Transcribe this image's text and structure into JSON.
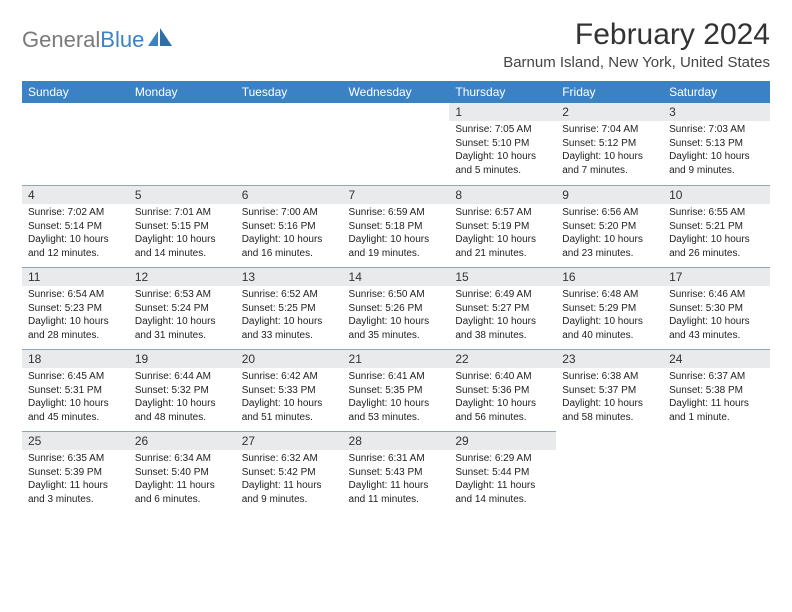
{
  "logo": {
    "text_gray": "General",
    "text_blue": "Blue"
  },
  "header": {
    "month_title": "February 2024",
    "location": "Barnum Island, New York, United States"
  },
  "colors": {
    "header_bg": "#3b82c4",
    "header_fg": "#ffffff",
    "daynum_bg": "#e9eaec",
    "rule": "#8fa5b8"
  },
  "weekdays": [
    "Sunday",
    "Monday",
    "Tuesday",
    "Wednesday",
    "Thursday",
    "Friday",
    "Saturday"
  ],
  "weeks": [
    [
      {
        "empty": true
      },
      {
        "empty": true
      },
      {
        "empty": true
      },
      {
        "empty": true
      },
      {
        "n": "1",
        "sr": "7:05 AM",
        "ss": "5:10 PM",
        "dl": "10 hours and 5 minutes."
      },
      {
        "n": "2",
        "sr": "7:04 AM",
        "ss": "5:12 PM",
        "dl": "10 hours and 7 minutes."
      },
      {
        "n": "3",
        "sr": "7:03 AM",
        "ss": "5:13 PM",
        "dl": "10 hours and 9 minutes."
      }
    ],
    [
      {
        "n": "4",
        "sr": "7:02 AM",
        "ss": "5:14 PM",
        "dl": "10 hours and 12 minutes."
      },
      {
        "n": "5",
        "sr": "7:01 AM",
        "ss": "5:15 PM",
        "dl": "10 hours and 14 minutes."
      },
      {
        "n": "6",
        "sr": "7:00 AM",
        "ss": "5:16 PM",
        "dl": "10 hours and 16 minutes."
      },
      {
        "n": "7",
        "sr": "6:59 AM",
        "ss": "5:18 PM",
        "dl": "10 hours and 19 minutes."
      },
      {
        "n": "8",
        "sr": "6:57 AM",
        "ss": "5:19 PM",
        "dl": "10 hours and 21 minutes."
      },
      {
        "n": "9",
        "sr": "6:56 AM",
        "ss": "5:20 PM",
        "dl": "10 hours and 23 minutes."
      },
      {
        "n": "10",
        "sr": "6:55 AM",
        "ss": "5:21 PM",
        "dl": "10 hours and 26 minutes."
      }
    ],
    [
      {
        "n": "11",
        "sr": "6:54 AM",
        "ss": "5:23 PM",
        "dl": "10 hours and 28 minutes."
      },
      {
        "n": "12",
        "sr": "6:53 AM",
        "ss": "5:24 PM",
        "dl": "10 hours and 31 minutes."
      },
      {
        "n": "13",
        "sr": "6:52 AM",
        "ss": "5:25 PM",
        "dl": "10 hours and 33 minutes."
      },
      {
        "n": "14",
        "sr": "6:50 AM",
        "ss": "5:26 PM",
        "dl": "10 hours and 35 minutes."
      },
      {
        "n": "15",
        "sr": "6:49 AM",
        "ss": "5:27 PM",
        "dl": "10 hours and 38 minutes."
      },
      {
        "n": "16",
        "sr": "6:48 AM",
        "ss": "5:29 PM",
        "dl": "10 hours and 40 minutes."
      },
      {
        "n": "17",
        "sr": "6:46 AM",
        "ss": "5:30 PM",
        "dl": "10 hours and 43 minutes."
      }
    ],
    [
      {
        "n": "18",
        "sr": "6:45 AM",
        "ss": "5:31 PM",
        "dl": "10 hours and 45 minutes."
      },
      {
        "n": "19",
        "sr": "6:44 AM",
        "ss": "5:32 PM",
        "dl": "10 hours and 48 minutes."
      },
      {
        "n": "20",
        "sr": "6:42 AM",
        "ss": "5:33 PM",
        "dl": "10 hours and 51 minutes."
      },
      {
        "n": "21",
        "sr": "6:41 AM",
        "ss": "5:35 PM",
        "dl": "10 hours and 53 minutes."
      },
      {
        "n": "22",
        "sr": "6:40 AM",
        "ss": "5:36 PM",
        "dl": "10 hours and 56 minutes."
      },
      {
        "n": "23",
        "sr": "6:38 AM",
        "ss": "5:37 PM",
        "dl": "10 hours and 58 minutes."
      },
      {
        "n": "24",
        "sr": "6:37 AM",
        "ss": "5:38 PM",
        "dl": "11 hours and 1 minute."
      }
    ],
    [
      {
        "n": "25",
        "sr": "6:35 AM",
        "ss": "5:39 PM",
        "dl": "11 hours and 3 minutes."
      },
      {
        "n": "26",
        "sr": "6:34 AM",
        "ss": "5:40 PM",
        "dl": "11 hours and 6 minutes."
      },
      {
        "n": "27",
        "sr": "6:32 AM",
        "ss": "5:42 PM",
        "dl": "11 hours and 9 minutes."
      },
      {
        "n": "28",
        "sr": "6:31 AM",
        "ss": "5:43 PM",
        "dl": "11 hours and 11 minutes."
      },
      {
        "n": "29",
        "sr": "6:29 AM",
        "ss": "5:44 PM",
        "dl": "11 hours and 14 minutes."
      },
      {
        "empty": true
      },
      {
        "empty": true
      }
    ]
  ],
  "labels": {
    "sunrise": "Sunrise: ",
    "sunset": "Sunset: ",
    "daylight": "Daylight: "
  }
}
